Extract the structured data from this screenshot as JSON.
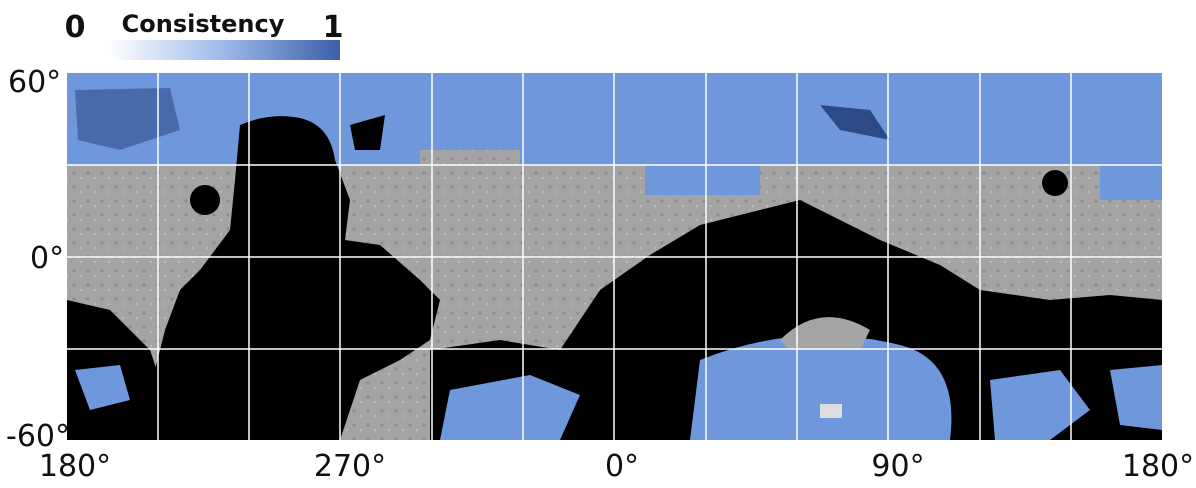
{
  "legend": {
    "min_label": "0",
    "title": "Consistency",
    "max_label": "1"
  },
  "latitude_labels": [
    "60°",
    "0°",
    "-60°"
  ],
  "longitude_labels": [
    "180°",
    "270°",
    "0°",
    "90°",
    "180°"
  ]
}
